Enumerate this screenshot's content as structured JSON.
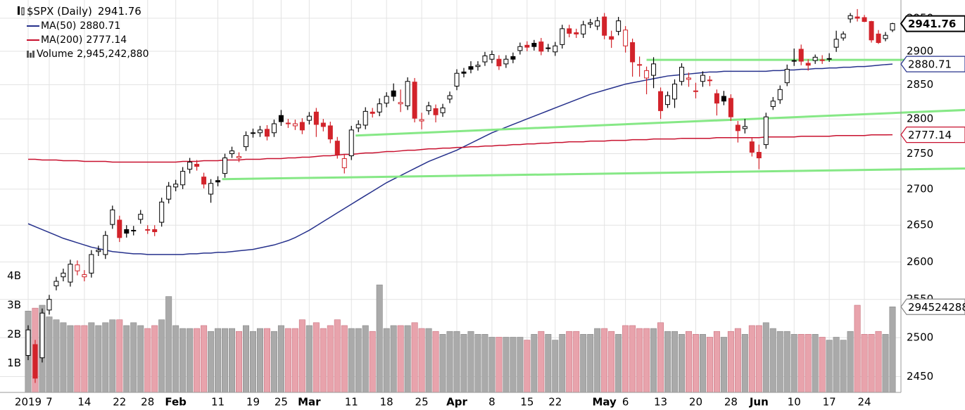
{
  "chart_data": {
    "type": "candlestick",
    "symbol": "$SPX (Daily)",
    "categories": [
      "2019",
      null,
      null,
      "7",
      null,
      null,
      null,
      null,
      "14",
      null,
      null,
      null,
      null,
      "22",
      null,
      null,
      null,
      "28",
      null,
      null,
      null,
      "Feb",
      null,
      null,
      null,
      null,
      null,
      "11",
      null,
      null,
      null,
      null,
      "19",
      null,
      null,
      null,
      "25",
      null,
      null,
      null,
      "Mar",
      null,
      null,
      null,
      null,
      null,
      "11",
      null,
      null,
      null,
      null,
      "18",
      null,
      null,
      null,
      null,
      "25",
      null,
      null,
      null,
      null,
      "Apr",
      null,
      null,
      null,
      null,
      "8",
      null,
      null,
      null,
      null,
      "15",
      null,
      null,
      null,
      "22",
      null,
      null,
      null,
      null,
      null,
      null,
      "May",
      null,
      null,
      "6",
      null,
      null,
      null,
      null,
      "13",
      null,
      null,
      null,
      null,
      "20",
      null,
      null,
      null,
      null,
      "28",
      null,
      null,
      null,
      "Jun",
      null,
      null,
      null,
      null,
      "10",
      null,
      null,
      null,
      null,
      "17",
      null,
      null,
      null,
      null,
      "24",
      null,
      null,
      null,
      null
    ],
    "open": [
      2477,
      2491,
      2474,
      2536,
      2568,
      2580,
      2573,
      2588,
      2580,
      2585,
      2614,
      2610,
      2651,
      2657,
      2644,
      2642,
      2658,
      2644,
      2644,
      2654,
      2686,
      2703,
      2706,
      2728,
      2735,
      2717,
      2693,
      2712,
      2722,
      2750,
      2744,
      2760,
      2779,
      2780,
      2785,
      2780,
      2805,
      2793,
      2790,
      2795,
      2798,
      2810,
      2794,
      2790,
      2768,
      2730,
      2747,
      2787,
      2791,
      2810,
      2810,
      2823,
      2841,
      2822,
      2819,
      2854,
      2797,
      2812,
      2815,
      2809,
      2829,
      2848,
      2869,
      2877,
      2877,
      2884,
      2888,
      2888,
      2881,
      2892,
      2901,
      2909,
      2912,
      2914,
      2905,
      2899,
      2910,
      2934,
      2928,
      2926,
      2941,
      2938,
      2952,
      2922,
      2930,
      2908,
      2913,
      2880,
      2860,
      2864,
      2840,
      2821,
      2829,
      2855,
      2858,
      2841,
      2855,
      2856,
      2837,
      2833,
      2830,
      2791,
      2786,
      2767,
      2752,
      2763,
      2818,
      2828,
      2853,
      2885,
      2903,
      2882,
      2886,
      2887,
      2889,
      2906,
      2920,
      2949,
      2952,
      2951,
      2945,
      2926,
      2919,
      2932
    ],
    "high": [
      2516,
      2497,
      2538,
      2556,
      2580,
      2591,
      2603,
      2602,
      2589,
      2616,
      2622,
      2642,
      2677,
      2663,
      2650,
      2649,
      2671,
      2650,
      2650,
      2688,
      2710,
      2713,
      2731,
      2744,
      2741,
      2723,
      2714,
      2718,
      2750,
      2760,
      2752,
      2782,
      2786,
      2790,
      2791,
      2799,
      2813,
      2800,
      2799,
      2801,
      2810,
      2816,
      2800,
      2796,
      2774,
      2749,
      2790,
      2798,
      2817,
      2816,
      2830,
      2839,
      2852,
      2843,
      2861,
      2860,
      2809,
      2825,
      2821,
      2822,
      2840,
      2873,
      2875,
      2885,
      2885,
      2899,
      2901,
      2894,
      2894,
      2898,
      2913,
      2915,
      2917,
      2920,
      2911,
      2914,
      2940,
      2940,
      2934,
      2946,
      2949,
      2952,
      2958,
      2931,
      2952,
      2938,
      2919,
      2892,
      2877,
      2891,
      2846,
      2840,
      2858,
      2882,
      2868,
      2853,
      2870,
      2863,
      2843,
      2841,
      2836,
      2797,
      2800,
      2773,
      2763,
      2809,
      2832,
      2849,
      2880,
      2904,
      2910,
      2888,
      2895,
      2894,
      2897,
      2931,
      2930,
      2958,
      2964,
      2955,
      2946,
      2932,
      2929,
      2943
    ],
    "low": [
      2471,
      2442,
      2468,
      2530,
      2562,
      2574,
      2567,
      2582,
      2574,
      2579,
      2608,
      2604,
      2645,
      2627,
      2633,
      2636,
      2652,
      2638,
      2635,
      2648,
      2680,
      2697,
      2700,
      2722,
      2726,
      2701,
      2681,
      2704,
      2716,
      2744,
      2738,
      2754,
      2773,
      2774,
      2769,
      2774,
      2790,
      2787,
      2784,
      2778,
      2792,
      2774,
      2782,
      2765,
      2743,
      2722,
      2741,
      2781,
      2785,
      2802,
      2804,
      2817,
      2826,
      2810,
      2813,
      2795,
      2785,
      2806,
      2795,
      2803,
      2823,
      2842,
      2861,
      2867,
      2871,
      2878,
      2882,
      2872,
      2875,
      2882,
      2895,
      2900,
      2901,
      2894,
      2899,
      2893,
      2904,
      2921,
      2920,
      2920,
      2935,
      2932,
      2918,
      2905,
      2924,
      2898,
      2862,
      2862,
      2836,
      2845,
      2800,
      2816,
      2816,
      2849,
      2847,
      2830,
      2847,
      2848,
      2805,
      2820,
      2797,
      2766,
      2779,
      2746,
      2728,
      2757,
      2813,
      2822,
      2848,
      2878,
      2879,
      2871,
      2881,
      2881,
      2884,
      2899,
      2916,
      2943,
      2945,
      2944,
      2913,
      2911,
      2915,
      2929
    ],
    "close": [
      2510,
      2448,
      2532,
      2550,
      2574,
      2585,
      2597,
      2596,
      2583,
      2610,
      2616,
      2636,
      2671,
      2633,
      2639,
      2643,
      2665,
      2644,
      2641,
      2682,
      2704,
      2707,
      2725,
      2738,
      2732,
      2707,
      2708,
      2710,
      2744,
      2754,
      2746,
      2776,
      2780,
      2784,
      2775,
      2793,
      2796,
      2794,
      2793,
      2784,
      2804,
      2792,
      2789,
      2771,
      2749,
      2743,
      2784,
      2792,
      2811,
      2808,
      2822,
      2833,
      2833,
      2824,
      2855,
      2801,
      2799,
      2819,
      2806,
      2816,
      2834,
      2867,
      2867,
      2873,
      2879,
      2893,
      2895,
      2878,
      2888,
      2888,
      2907,
      2906,
      2907,
      2900,
      2905,
      2908,
      2934,
      2927,
      2926,
      2940,
      2943,
      2946,
      2924,
      2918,
      2946,
      2932,
      2884,
      2880,
      2871,
      2881,
      2812,
      2834,
      2851,
      2876,
      2860,
      2840,
      2864,
      2857,
      2823,
      2826,
      2803,
      2783,
      2789,
      2752,
      2744,
      2803,
      2826,
      2843,
      2873,
      2886,
      2885,
      2879,
      2891,
      2887,
      2889,
      2918,
      2926,
      2954,
      2950,
      2945,
      2917,
      2913,
      2924,
      2941.76
    ],
    "up_color": "#000000",
    "down_color": "#d2232a",
    "ylim": [
      2430,
      2978
    ],
    "log_y": true,
    "yticks": [
      2450,
      2500,
      2550,
      2600,
      2650,
      2700,
      2750,
      2800,
      2850,
      2900,
      2950
    ],
    "grid": true,
    "series": [
      {
        "name": "MA(50)",
        "color": "#26318c",
        "values": [
          2652,
          2648,
          2644,
          2640,
          2636,
          2632,
          2629,
          2626,
          2623,
          2620,
          2618,
          2616,
          2614,
          2613,
          2612,
          2611,
          2611,
          2610,
          2610,
          2610,
          2610,
          2610,
          2610,
          2611,
          2611,
          2612,
          2612,
          2613,
          2613,
          2614,
          2615,
          2616,
          2617,
          2619,
          2621,
          2623,
          2626,
          2629,
          2633,
          2638,
          2643,
          2649,
          2655,
          2661,
          2667,
          2673,
          2679,
          2685,
          2691,
          2697,
          2703,
          2709,
          2714,
          2719,
          2724,
          2729,
          2734,
          2739,
          2743,
          2747,
          2751,
          2755,
          2760,
          2765,
          2770,
          2775,
          2780,
          2784,
          2788,
          2792,
          2796,
          2800,
          2804,
          2808,
          2812,
          2816,
          2820,
          2824,
          2828,
          2832,
          2836,
          2839,
          2842,
          2845,
          2848,
          2851,
          2853,
          2855,
          2857,
          2859,
          2861,
          2863,
          2864,
          2865,
          2866,
          2867,
          2868,
          2869,
          2869,
          2870,
          2870,
          2870,
          2870,
          2870,
          2870,
          2870,
          2871,
          2871,
          2872,
          2872,
          2873,
          2873,
          2874,
          2874,
          2875,
          2875,
          2876,
          2876,
          2877,
          2877,
          2878,
          2879,
          2880,
          2880.71
        ]
      },
      {
        "name": "MA(200)",
        "color": "#c8102e",
        "values": [
          2742,
          2742,
          2741,
          2741,
          2741,
          2740,
          2740,
          2740,
          2739,
          2739,
          2739,
          2739,
          2738,
          2738,
          2738,
          2738,
          2738,
          2738,
          2738,
          2738,
          2738,
          2738,
          2739,
          2739,
          2739,
          2740,
          2740,
          2740,
          2741,
          2741,
          2741,
          2742,
          2742,
          2742,
          2743,
          2743,
          2743,
          2744,
          2744,
          2745,
          2745,
          2746,
          2747,
          2747,
          2748,
          2749,
          2749,
          2750,
          2751,
          2751,
          2752,
          2753,
          2753,
          2754,
          2755,
          2755,
          2756,
          2757,
          2757,
          2758,
          2758,
          2759,
          2759,
          2760,
          2760,
          2761,
          2761,
          2762,
          2762,
          2763,
          2763,
          2764,
          2764,
          2765,
          2765,
          2766,
          2766,
          2767,
          2767,
          2767,
          2768,
          2768,
          2768,
          2769,
          2769,
          2769,
          2770,
          2770,
          2770,
          2771,
          2771,
          2771,
          2771,
          2772,
          2772,
          2772,
          2772,
          2772,
          2773,
          2773,
          2773,
          2773,
          2773,
          2773,
          2773,
          2774,
          2774,
          2774,
          2774,
          2774,
          2775,
          2775,
          2775,
          2775,
          2775,
          2776,
          2776,
          2776,
          2776,
          2776,
          2777,
          2777,
          2777,
          2777.14
        ]
      }
    ],
    "volume": {
      "name": "Volume",
      "color": "#aaaaaa",
      "down_color": "#e8a3ac",
      "values": [
        2800000000.0,
        2900000000.0,
        3000000000.0,
        2600000000.0,
        2500000000.0,
        2400000000.0,
        2300000000.0,
        2300000000.0,
        2300000000.0,
        2400000000.0,
        2300000000.0,
        2400000000.0,
        2500000000.0,
        2500000000.0,
        2300000000.0,
        2400000000.0,
        2300000000.0,
        2200000000.0,
        2300000000.0,
        2500000000.0,
        3300000000.0,
        2300000000.0,
        2200000000.0,
        2200000000.0,
        2200000000.0,
        2300000000.0,
        2100000000.0,
        2200000000.0,
        2200000000.0,
        2200000000.0,
        2100000000.0,
        2300000000.0,
        2100000000.0,
        2200000000.0,
        2200000000.0,
        2100000000.0,
        2300000000.0,
        2200000000.0,
        2200000000.0,
        2500000000.0,
        2300000000.0,
        2400000000.0,
        2200000000.0,
        2300000000.0,
        2500000000.0,
        2300000000.0,
        2200000000.0,
        2200000000.0,
        2300000000.0,
        2100000000.0,
        3700000000.0,
        2200000000.0,
        2300000000.0,
        2300000000.0,
        2300000000.0,
        2400000000.0,
        2200000000.0,
        2200000000.0,
        2100000000.0,
        2000000000.0,
        2100000000.0,
        2100000000.0,
        2000000000.0,
        2100000000.0,
        2000000000.0,
        2000000000.0,
        1900000000.0,
        1900000000.0,
        1900000000.0,
        1900000000.0,
        1900000000.0,
        1800000000.0,
        2000000000.0,
        2100000000.0,
        2000000000.0,
        1800000000.0,
        2000000000.0,
        2100000000.0,
        2100000000.0,
        2000000000.0,
        2000000000.0,
        2200000000.0,
        2200000000.0,
        2100000000.0,
        2000000000.0,
        2300000000.0,
        2300000000.0,
        2200000000.0,
        2200000000.0,
        2200000000.0,
        2400000000.0,
        2100000000.0,
        2100000000.0,
        2000000000.0,
        2100000000.0,
        2000000000.0,
        2000000000.0,
        1900000000.0,
        2100000000.0,
        1900000000.0,
        2100000000.0,
        2200000000.0,
        2000000000.0,
        2300000000.0,
        2300000000.0,
        2400000000.0,
        2200000000.0,
        2100000000.0,
        2100000000.0,
        2000000000.0,
        2000000000.0,
        2000000000.0,
        2000000000.0,
        1900000000.0,
        1800000000.0,
        1900000000.0,
        1800000000.0,
        2100000000.0,
        3000000000.0,
        2000000000.0,
        2000000000.0,
        2100000000.0,
        2000000000.0,
        2945242880
      ],
      "value_label": "2,945,242,880"
    },
    "volume_ylim": [
      0,
      13500000000.0
    ],
    "volume_yticks": [
      {
        "value": 1000000000.0,
        "label": "1B"
      },
      {
        "value": 2000000000.0,
        "label": "2B"
      },
      {
        "value": 3000000000.0,
        "label": "3B"
      },
      {
        "value": 4000000000.0,
        "label": "4B"
      }
    ],
    "trendlines": [
      {
        "color": "#86e886",
        "x": [
          88,
          133.4
        ],
        "values": [
          2887,
          2887
        ]
      },
      {
        "color": "#86e886",
        "x": [
          46.6,
          133.4
        ],
        "values": [
          2776,
          2813
        ]
      },
      {
        "color": "#86e886",
        "x": [
          27.6,
          133.4
        ],
        "values": [
          2714,
          2729
        ]
      }
    ]
  }
}
